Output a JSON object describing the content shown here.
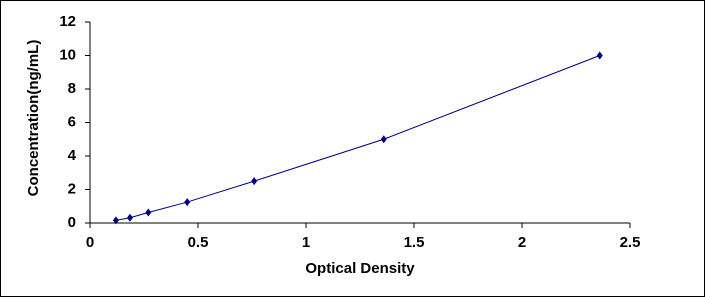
{
  "chart_data": {
    "type": "scatter",
    "xlabel": "Optical Density",
    "ylabel": "Concentration(ng/mL)",
    "x": [
      0.12,
      0.185,
      0.27,
      0.45,
      0.76,
      1.36,
      2.36
    ],
    "series": [
      {
        "color": "#000080",
        "values": [
          0.156,
          0.312,
          0.625,
          1.25,
          2.5,
          5,
          10
        ]
      }
    ],
    "xlim": [
      0,
      2.5
    ],
    "xticks": [
      0,
      0.5,
      1,
      1.5,
      2,
      2.5
    ],
    "ylim": [
      0,
      12
    ],
    "yticks": [
      0,
      2,
      4,
      6,
      8,
      10,
      12
    ],
    "line": true
  }
}
